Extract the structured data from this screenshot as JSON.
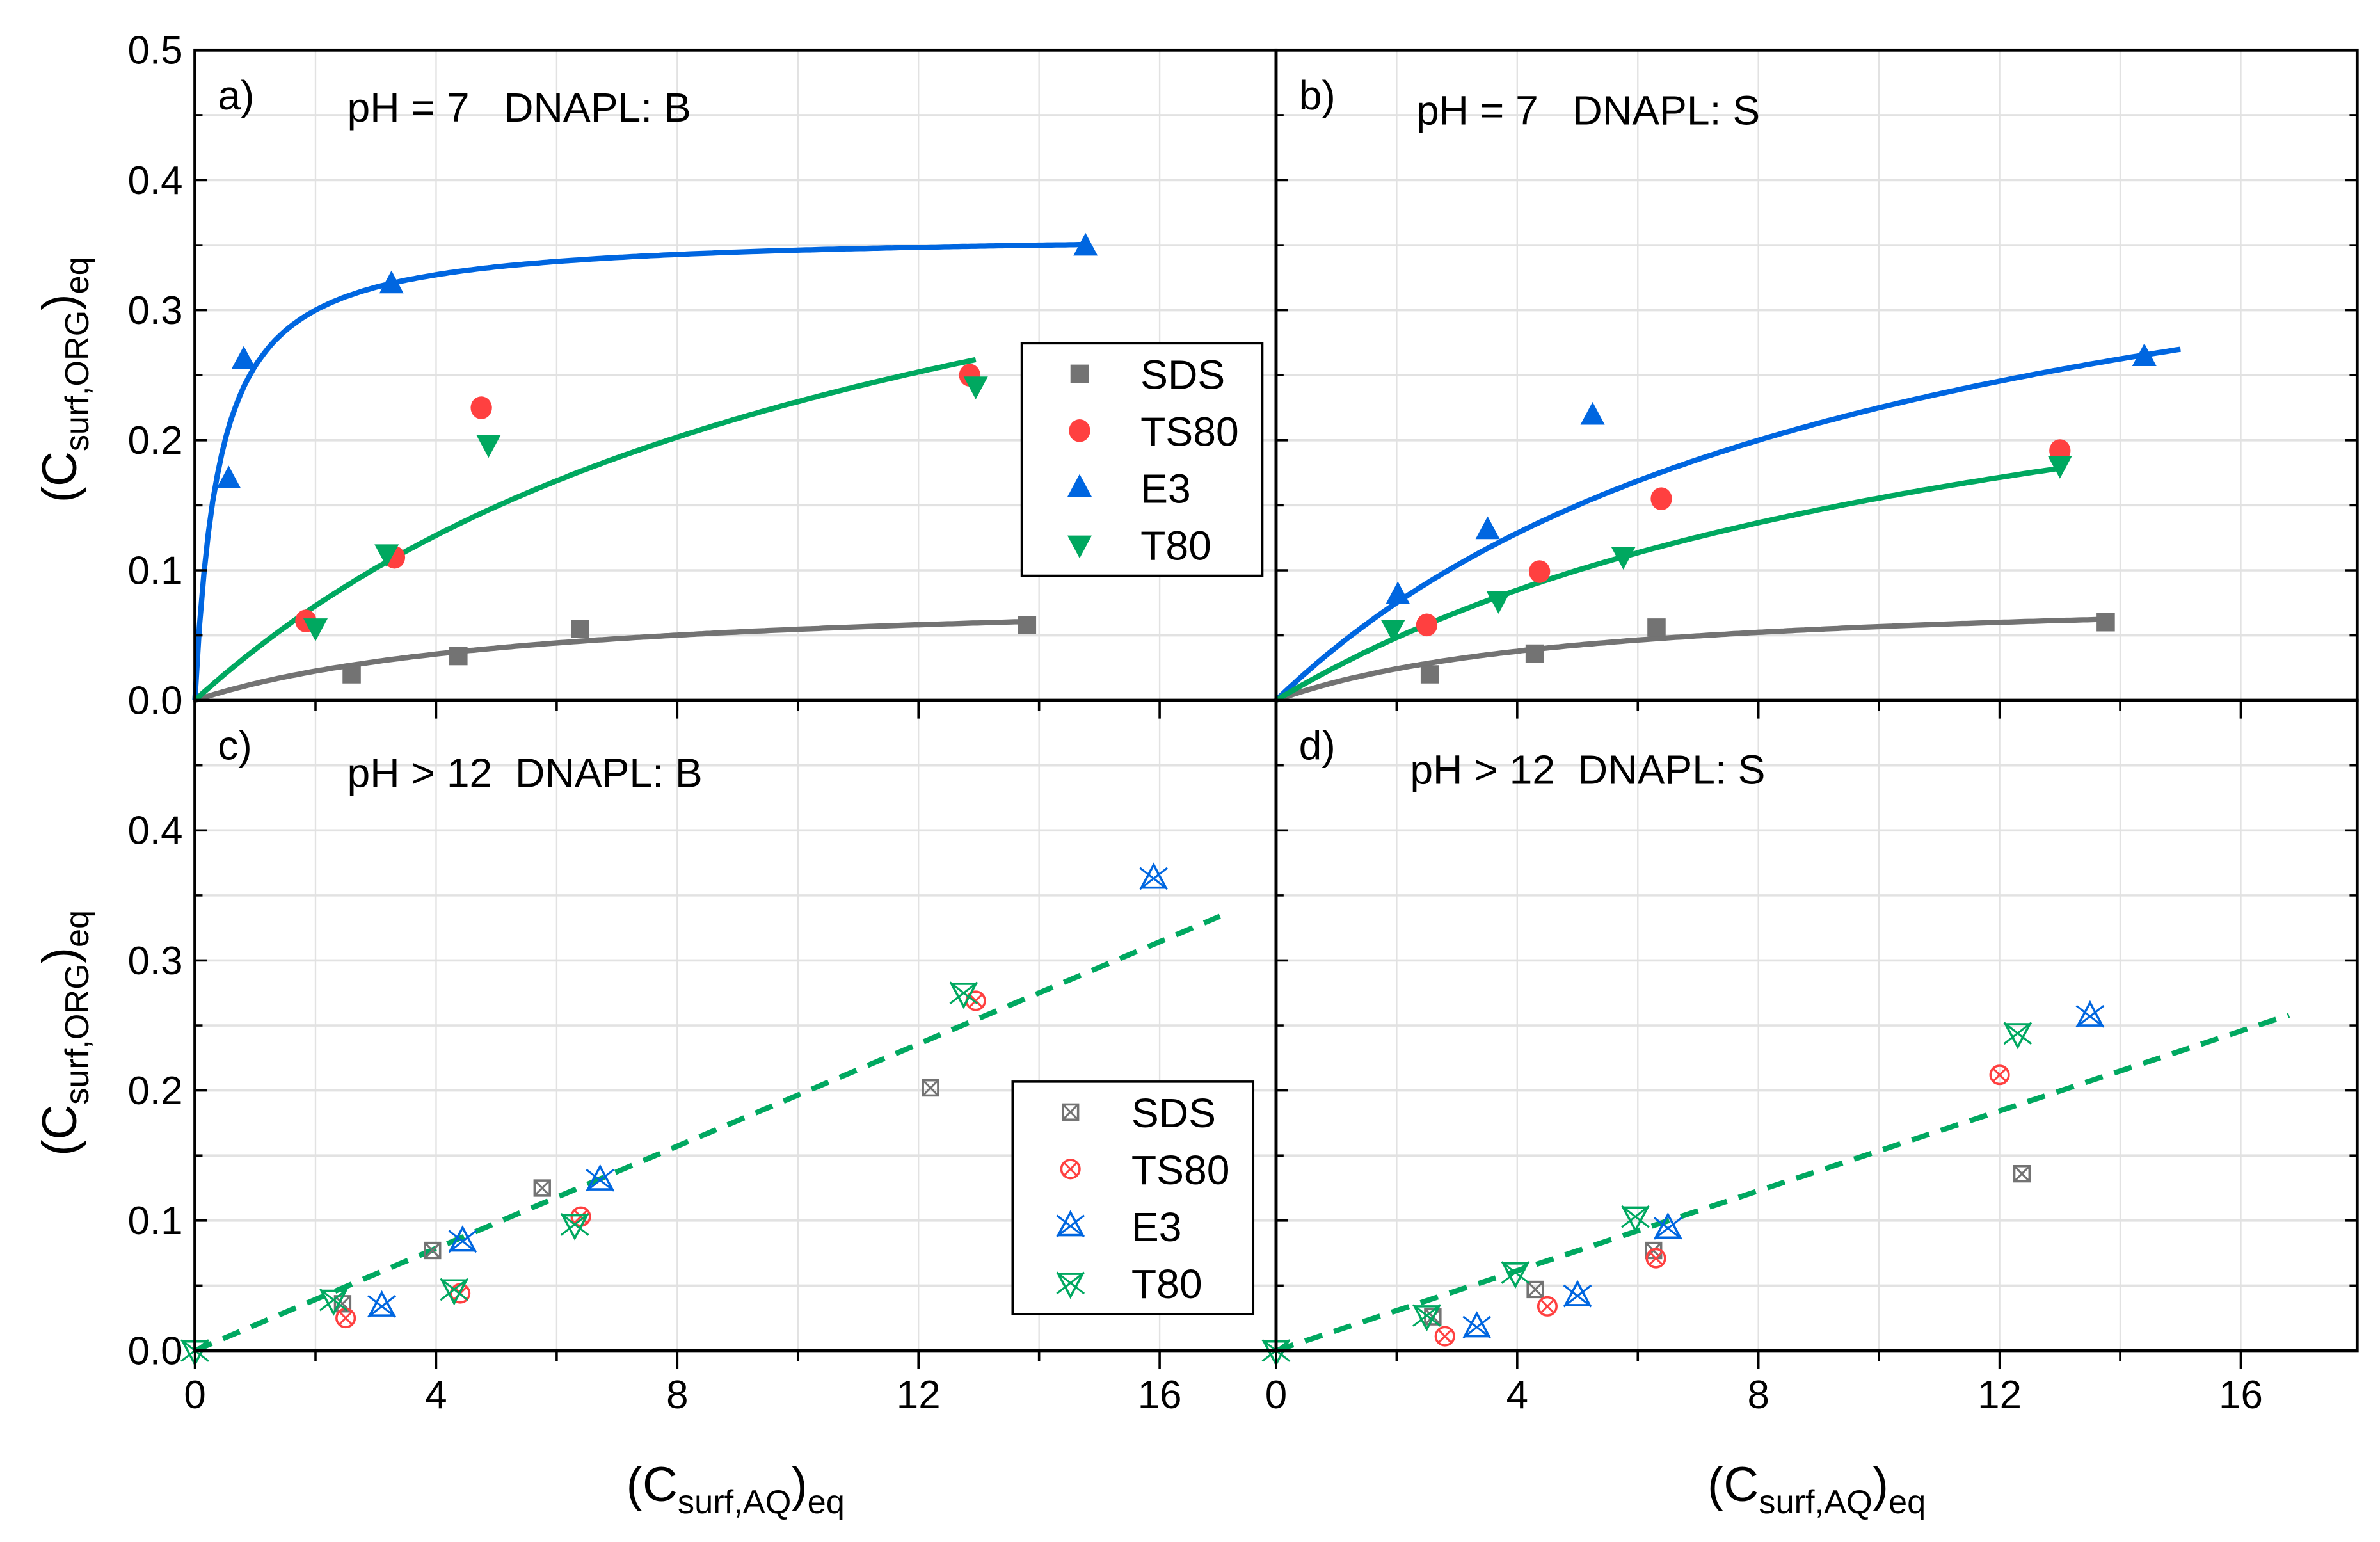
{
  "chart_data": [
    {
      "panel": "a",
      "type": "scatter",
      "label": "a)",
      "title": "pH = 7   DNAPL: B",
      "xlim": [
        0,
        17.93
      ],
      "ylim": [
        0,
        0.5
      ],
      "grid": true,
      "fit": "langmuir",
      "fit_style": "solid",
      "legend": "right",
      "series": [
        {
          "name": "SDS",
          "color": "#737373",
          "marker": "square",
          "x": [
            2.6,
            4.37,
            6.39,
            13.8
          ],
          "y": [
            0.02,
            0.034,
            0.055,
            0.058
          ],
          "fit_params": {
            "qmax": 0.085,
            "K": 0.18,
            "xmax": 13.8
          }
        },
        {
          "name": "TS80",
          "color": "#ff4040",
          "marker": "circle",
          "x": [
            1.84,
            3.31,
            4.75,
            12.85
          ],
          "y": [
            0.061,
            0.11,
            0.225,
            0.25
          ]
        },
        {
          "name": "E3",
          "color": "#0066e0",
          "marker": "triangle-up",
          "x": [
            0.56,
            0.81,
            3.26,
            14.77
          ],
          "y": [
            0.17,
            0.262,
            0.32,
            0.349
          ],
          "fit_params": {
            "qmax": 0.36,
            "K": 2.5,
            "xmax": 14.8
          }
        },
        {
          "name": "T80",
          "color": "#00a860",
          "marker": "triangle-down",
          "x": [
            2.0,
            3.18,
            4.87,
            12.95
          ],
          "y": [
            0.056,
            0.113,
            0.197,
            0.242
          ],
          "fit_params": {
            "qmax": 0.5,
            "K": 0.085,
            "xmax": 12.95
          }
        }
      ]
    },
    {
      "panel": "b",
      "type": "scatter",
      "label": "b)",
      "title": "pH = 7   DNAPL: S",
      "xlim": [
        0,
        17.93
      ],
      "ylim": [
        0,
        0.5
      ],
      "grid": true,
      "fit": "langmuir",
      "fit_style": "solid",
      "series": [
        {
          "name": "SDS",
          "color": "#737373",
          "marker": "square",
          "x": [
            2.55,
            4.29,
            6.31,
            13.76
          ],
          "y": [
            0.02,
            0.036,
            0.056,
            0.06
          ],
          "fit_params": {
            "qmax": 0.085,
            "K": 0.2,
            "xmax": 13.8
          }
        },
        {
          "name": "TS80",
          "color": "#ff4040",
          "marker": "circle",
          "x": [
            2.5,
            4.37,
            6.39,
            13.0
          ],
          "y": [
            0.058,
            0.099,
            0.155,
            0.192
          ]
        },
        {
          "name": "E3",
          "color": "#0066e0",
          "marker": "triangle-up",
          "x": [
            2.02,
            3.51,
            5.25,
            14.4
          ],
          "y": [
            0.081,
            0.131,
            0.219,
            0.264
          ],
          "fit_params": {
            "qmax": 0.45,
            "K": 0.1,
            "xmax": 15
          }
        },
        {
          "name": "T80",
          "color": "#00a860",
          "marker": "triangle-down",
          "x": [
            1.94,
            3.69,
            5.76,
            13.0
          ],
          "y": [
            0.055,
            0.077,
            0.111,
            0.181
          ],
          "fit_params": {
            "qmax": 0.35,
            "K": 0.08,
            "xmax": 13
          }
        }
      ]
    },
    {
      "panel": "c",
      "type": "scatter",
      "label": "c)",
      "title": "pH > 12  DNAPL: B",
      "xlim": [
        0,
        17.93
      ],
      "ylim": [
        0,
        0.5
      ],
      "grid": true,
      "fit": "linear",
      "fit_style": "dashed",
      "legend": "bottom-right",
      "series": [
        {
          "name": "SDS",
          "color": "#737373",
          "marker": "square-x",
          "x": [
            2.45,
            3.94,
            5.76,
            12.2
          ],
          "y": [
            0.036,
            0.077,
            0.125,
            0.202
          ]
        },
        {
          "name": "TS80",
          "color": "#ff4040",
          "marker": "circle-x",
          "x": [
            2.5,
            4.4,
            6.4,
            12.95
          ],
          "y": [
            0.025,
            0.044,
            0.103,
            0.269
          ]
        },
        {
          "name": "E3",
          "color": "#0066e0",
          "marker": "triangle-up-x",
          "x": [
            3.1,
            4.44,
            6.72,
            15.9
          ],
          "y": [
            0.034,
            0.084,
            0.131,
            0.363
          ]
        },
        {
          "name": "T80",
          "color": "#00a860",
          "marker": "triangle-down-x",
          "x": [
            0,
            2.3,
            4.3,
            6.3,
            12.75
          ],
          "y": [
            0,
            0.039,
            0.047,
            0.097,
            0.275
          ]
        }
      ],
      "fit_line": {
        "color": "#00a860",
        "x": [
          0,
          17
        ],
        "y": [
          0,
          0.334
        ]
      }
    },
    {
      "panel": "d",
      "type": "scatter",
      "label": "d)",
      "title": "pH > 12  DNAPL: S",
      "xlim": [
        0,
        17.93
      ],
      "ylim": [
        0,
        0.5
      ],
      "grid": true,
      "fit": "linear",
      "fit_style": "dashed",
      "series": [
        {
          "name": "SDS",
          "color": "#737373",
          "marker": "square-x",
          "x": [
            2.6,
            4.3,
            6.26,
            12.37
          ],
          "y": [
            0.026,
            0.047,
            0.077,
            0.136
          ]
        },
        {
          "name": "TS80",
          "color": "#ff4040",
          "marker": "circle-x",
          "x": [
            2.8,
            4.5,
            6.3,
            12.0
          ],
          "y": [
            0.011,
            0.034,
            0.071,
            0.212
          ]
        },
        {
          "name": "E3",
          "color": "#0066e0",
          "marker": "triangle-up-x",
          "x": [
            3.33,
            5.0,
            6.5,
            13.5
          ],
          "y": [
            0.018,
            0.042,
            0.094,
            0.257
          ]
        },
        {
          "name": "T80",
          "color": "#00a860",
          "marker": "triangle-down-x",
          "x": [
            0,
            2.5,
            3.97,
            5.96,
            12.3
          ],
          "y": [
            0,
            0.027,
            0.06,
            0.103,
            0.244
          ]
        }
      ],
      "fit_line": {
        "color": "#00a860",
        "x": [
          0,
          16.8
        ],
        "y": [
          0,
          0.258
        ]
      }
    }
  ],
  "axes": {
    "y_ticks_top": [
      "0.0",
      "0.1",
      "0.2",
      "0.3",
      "0.4",
      "0.5"
    ],
    "y_ticks_bottom": [
      "0.0",
      "0.1",
      "0.2",
      "0.3",
      "0.4"
    ],
    "x_ticks": [
      "0",
      "4",
      "8",
      "12",
      "16"
    ],
    "ylabel_main": "(C",
    "ylabel_sub": "surf,ORG",
    "ylabel_end": ")",
    "ylabel_eq": "eq",
    "xlabel_main": "(C",
    "xlabel_sub": "surf,AQ",
    "xlabel_end": ")",
    "xlabel_eq": "eq"
  }
}
